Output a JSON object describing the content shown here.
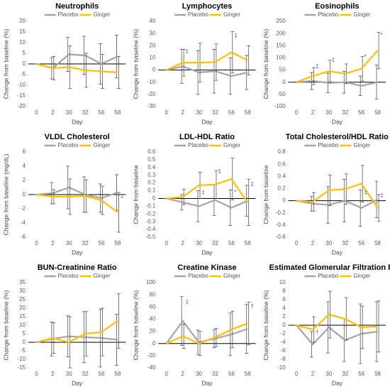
{
  "chart_data": [
    {
      "type": "line",
      "title": "Neutrophils",
      "x_label": "Day",
      "y_label": "Change from baseline (%)",
      "categories": [
        "0",
        "2",
        "30",
        "32",
        "56",
        "58"
      ],
      "series": [
        {
          "name": "Placebo",
          "color": "#a5a5a5",
          "values": [
            0,
            -2,
            4.5,
            4,
            0,
            3.5
          ],
          "errors": [
            0,
            5,
            8,
            9,
            9.5,
            10
          ]
        },
        {
          "name": "Ginger",
          "color": "#ffc000",
          "values": [
            0,
            -2,
            -1.5,
            -3,
            -3.5,
            -4
          ],
          "errors": [
            0,
            5.5,
            10,
            8,
            8,
            7.5
          ]
        }
      ],
      "ylim": [
        -20,
        20
      ],
      "yticks": [
        -20,
        -15,
        -10,
        -5,
        0,
        5,
        10,
        15,
        20
      ],
      "annotations": []
    },
    {
      "type": "line",
      "title": "Lymphocytes",
      "x_label": "Day",
      "y_label": "Change from baseline (%)",
      "categories": [
        "0",
        "2",
        "30",
        "32",
        "56",
        "58"
      ],
      "series": [
        {
          "name": "Placebo",
          "color": "#a5a5a5",
          "values": [
            0,
            3,
            -2,
            -1,
            -5,
            -2
          ],
          "errors": [
            0,
            14,
            18,
            18,
            15,
            14
          ]
        },
        {
          "name": "Ginger",
          "color": "#ffc000",
          "values": [
            0,
            6,
            6,
            6.5,
            14.5,
            8
          ],
          "errors": [
            0,
            11,
            16,
            15,
            17,
            12
          ]
        }
      ],
      "ylim": [
        -30,
        40
      ],
      "yticks": [
        -30,
        -20,
        -10,
        0,
        10,
        20,
        30,
        40
      ],
      "annotations": [
        {
          "text": "‡",
          "category": "2",
          "series": "Placebo"
        },
        {
          "text": "‡",
          "category": "56",
          "series": "Ginger"
        }
      ]
    },
    {
      "type": "line",
      "title": "Eosinophils",
      "x_label": "Day",
      "y_label": "Change from baseline (%)",
      "categories": [
        "0",
        "2",
        "30",
        "32",
        "56",
        "58"
      ],
      "series": [
        {
          "name": "Placebo",
          "color": "#a5a5a5",
          "values": [
            0,
            5,
            -3,
            0,
            -15,
            0
          ],
          "errors": [
            0,
            35,
            40,
            45,
            40,
            70
          ]
        },
        {
          "name": "Ginger",
          "color": "#ffc000",
          "values": [
            0,
            25,
            45,
            35,
            55,
            130
          ],
          "errors": [
            0,
            35,
            45,
            40,
            50,
            75
          ]
        }
      ],
      "ylim": [
        -100,
        250
      ],
      "yticks": [
        -100,
        -50,
        0,
        50,
        100,
        150,
        200,
        250
      ],
      "annotations": [
        {
          "text": "‡",
          "category": "2",
          "series": "Ginger"
        },
        {
          "text": "‡",
          "category": "30",
          "series": "Ginger"
        },
        {
          "text": "*",
          "category": "56",
          "series": "Ginger"
        },
        {
          "text": "*",
          "category": "58",
          "series": "Ginger"
        }
      ]
    },
    {
      "type": "line",
      "title": "VLDL Cholesterol",
      "x_label": "Day",
      "y_label": "Change from baseline (mg/dL)",
      "categories": [
        "0",
        "2",
        "30",
        "32",
        "56",
        "58"
      ],
      "series": [
        {
          "name": "Placebo",
          "color": "#a5a5a5",
          "values": [
            0,
            0.2,
            1,
            0,
            -0.5,
            0.3
          ],
          "errors": [
            0,
            1.5,
            3,
            2.5,
            2,
            2.5
          ]
        },
        {
          "name": "Ginger",
          "color": "#ffc000",
          "values": [
            0,
            -0.3,
            -0.3,
            -0.2,
            -0.8,
            -2.5
          ],
          "errors": [
            0,
            1,
            2.5,
            2.3,
            2,
            2.8
          ]
        }
      ],
      "ylim": [
        -6,
        6
      ],
      "yticks": [
        -6,
        -4,
        -2,
        0,
        2,
        4,
        6
      ],
      "annotations": [
        {
          "text": "‡",
          "category": "58",
          "series": "Ginger"
        }
      ]
    },
    {
      "type": "line",
      "title": "LDL-HDL Ratio",
      "x_label": "Day",
      "y_label": "Change from baseline",
      "categories": [
        "0",
        "2",
        "30",
        "32",
        "56",
        "58"
      ],
      "series": [
        {
          "name": "Placebo",
          "color": "#a5a5a5",
          "values": [
            0,
            -0.05,
            -0.1,
            -0.02,
            -0.12,
            -0.03
          ],
          "errors": [
            0,
            0.1,
            0.2,
            0.2,
            0.23,
            0.2
          ]
        },
        {
          "name": "Ginger",
          "color": "#ffc000",
          "values": [
            0,
            0.02,
            0.17,
            0.18,
            0.25,
            -0.05
          ],
          "errors": [
            0,
            0.1,
            0.17,
            0.18,
            0.27,
            0.3
          ]
        }
      ],
      "ylim": [
        -0.5,
        0.6
      ],
      "yticks": [
        -0.5,
        -0.4,
        -0.3,
        -0.2,
        -0.1,
        0,
        0.1,
        0.2,
        0.3,
        0.4,
        0.5,
        0.6
      ],
      "annotations": [
        {
          "text": "‡",
          "category": "30",
          "series": "Placebo"
        },
        {
          "text": "‡",
          "category": "32",
          "series": "Ginger"
        },
        {
          "text": "*",
          "category": "56",
          "series": "Placebo"
        },
        {
          "text": "‡",
          "category": "58",
          "series": "Ginger"
        }
      ]
    },
    {
      "type": "line",
      "title": "Total Cholesterol/HDL Ratio",
      "x_label": "Day",
      "y_label": "Change from baseline",
      "categories": [
        "0",
        "2",
        "30",
        "32",
        "56",
        "58"
      ],
      "series": [
        {
          "name": "Placebo",
          "color": "#a5a5a5",
          "values": [
            0,
            -0.05,
            -0.07,
            0,
            -0.12,
            0.02
          ],
          "errors": [
            0,
            0.12,
            0.3,
            0.35,
            0.3,
            0.3
          ]
        },
        {
          "name": "Ginger",
          "color": "#ffc000",
          "values": [
            0,
            -0.02,
            0.17,
            0.19,
            0.28,
            -0.12
          ],
          "errors": [
            0,
            0.15,
            0.25,
            0.25,
            0.3,
            0.22
          ]
        }
      ],
      "ylim": [
        -0.6,
        0.8
      ],
      "yticks": [
        -0.6,
        -0.4,
        -0.2,
        0,
        0.2,
        0.4,
        0.6,
        0.8
      ],
      "annotations": [
        {
          "text": "‡",
          "category": "56",
          "series": "Placebo"
        },
        {
          "text": "‡",
          "category": "58",
          "series": "Ginger"
        }
      ]
    },
    {
      "type": "line",
      "title": "BUN-Creatinine Ratio",
      "x_label": "Day",
      "y_label": "Change from baseline (%)",
      "categories": [
        "0",
        "2",
        "30",
        "32",
        "56",
        "58"
      ],
      "series": [
        {
          "name": "Placebo",
          "color": "#a5a5a5",
          "values": [
            0,
            2,
            3.5,
            3,
            2.5,
            1.5
          ],
          "errors": [
            0,
            10,
            12,
            15,
            17,
            15
          ]
        },
        {
          "name": "Ginger",
          "color": "#ffc000",
          "values": [
            0,
            2.5,
            0,
            5,
            6,
            12.5
          ],
          "errors": [
            0,
            9,
            15,
            13,
            14,
            16
          ]
        }
      ],
      "ylim": [
        -15,
        35
      ],
      "yticks": [
        -15,
        -10,
        -5,
        0,
        5,
        10,
        15,
        20,
        25,
        30,
        35
      ],
      "annotations": []
    },
    {
      "type": "line",
      "title": "Creatine Kinase",
      "x_label": "Day",
      "y_label": "Change from baseline (%)",
      "categories": [
        "0",
        "2",
        "30",
        "32",
        "56",
        "58"
      ],
      "series": [
        {
          "name": "Placebo",
          "color": "#a5a5a5",
          "values": [
            0,
            37,
            2,
            8,
            15,
            24
          ],
          "errors": [
            0,
            40,
            20,
            15,
            35,
            40
          ]
        },
        {
          "name": "Ginger",
          "color": "#ffc000",
          "values": [
            0,
            12,
            0,
            10,
            23,
            33
          ],
          "errors": [
            0,
            20,
            20,
            15,
            30,
            35
          ]
        }
      ],
      "ylim": [
        -40,
        100
      ],
      "yticks": [
        -40,
        -20,
        0,
        20,
        40,
        60,
        80,
        100
      ],
      "annotations": [
        {
          "text": "‡",
          "category": "2",
          "series": "Placebo"
        },
        {
          "text": "†",
          "category": "58",
          "series": "Ginger"
        }
      ]
    },
    {
      "type": "line",
      "title": "Estimated Glomerular Filtration Rate",
      "x_label": "Day",
      "y_label": "Change from baseline (%)",
      "categories": [
        "0",
        "2",
        "30",
        "32",
        "56",
        "58"
      ],
      "series": [
        {
          "name": "Placebo",
          "color": "#a5a5a5",
          "values": [
            0,
            -4.5,
            -0.5,
            -3.5,
            -2,
            -1.5
          ],
          "errors": [
            0,
            3,
            6,
            5,
            7,
            7
          ]
        },
        {
          "name": "Ginger",
          "color": "#ffc000",
          "values": [
            0,
            -1,
            2.5,
            1.5,
            -0.5,
            -0.3
          ],
          "errors": [
            0,
            3,
            5.5,
            5,
            5,
            6
          ]
        }
      ],
      "ylim": [
        -10,
        10
      ],
      "yticks": [
        -10,
        -8,
        -6,
        -4,
        -2,
        0,
        2,
        4,
        6,
        8,
        10
      ],
      "annotations": [
        {
          "text": "†",
          "category": "2",
          "series": "Placebo"
        }
      ]
    }
  ]
}
